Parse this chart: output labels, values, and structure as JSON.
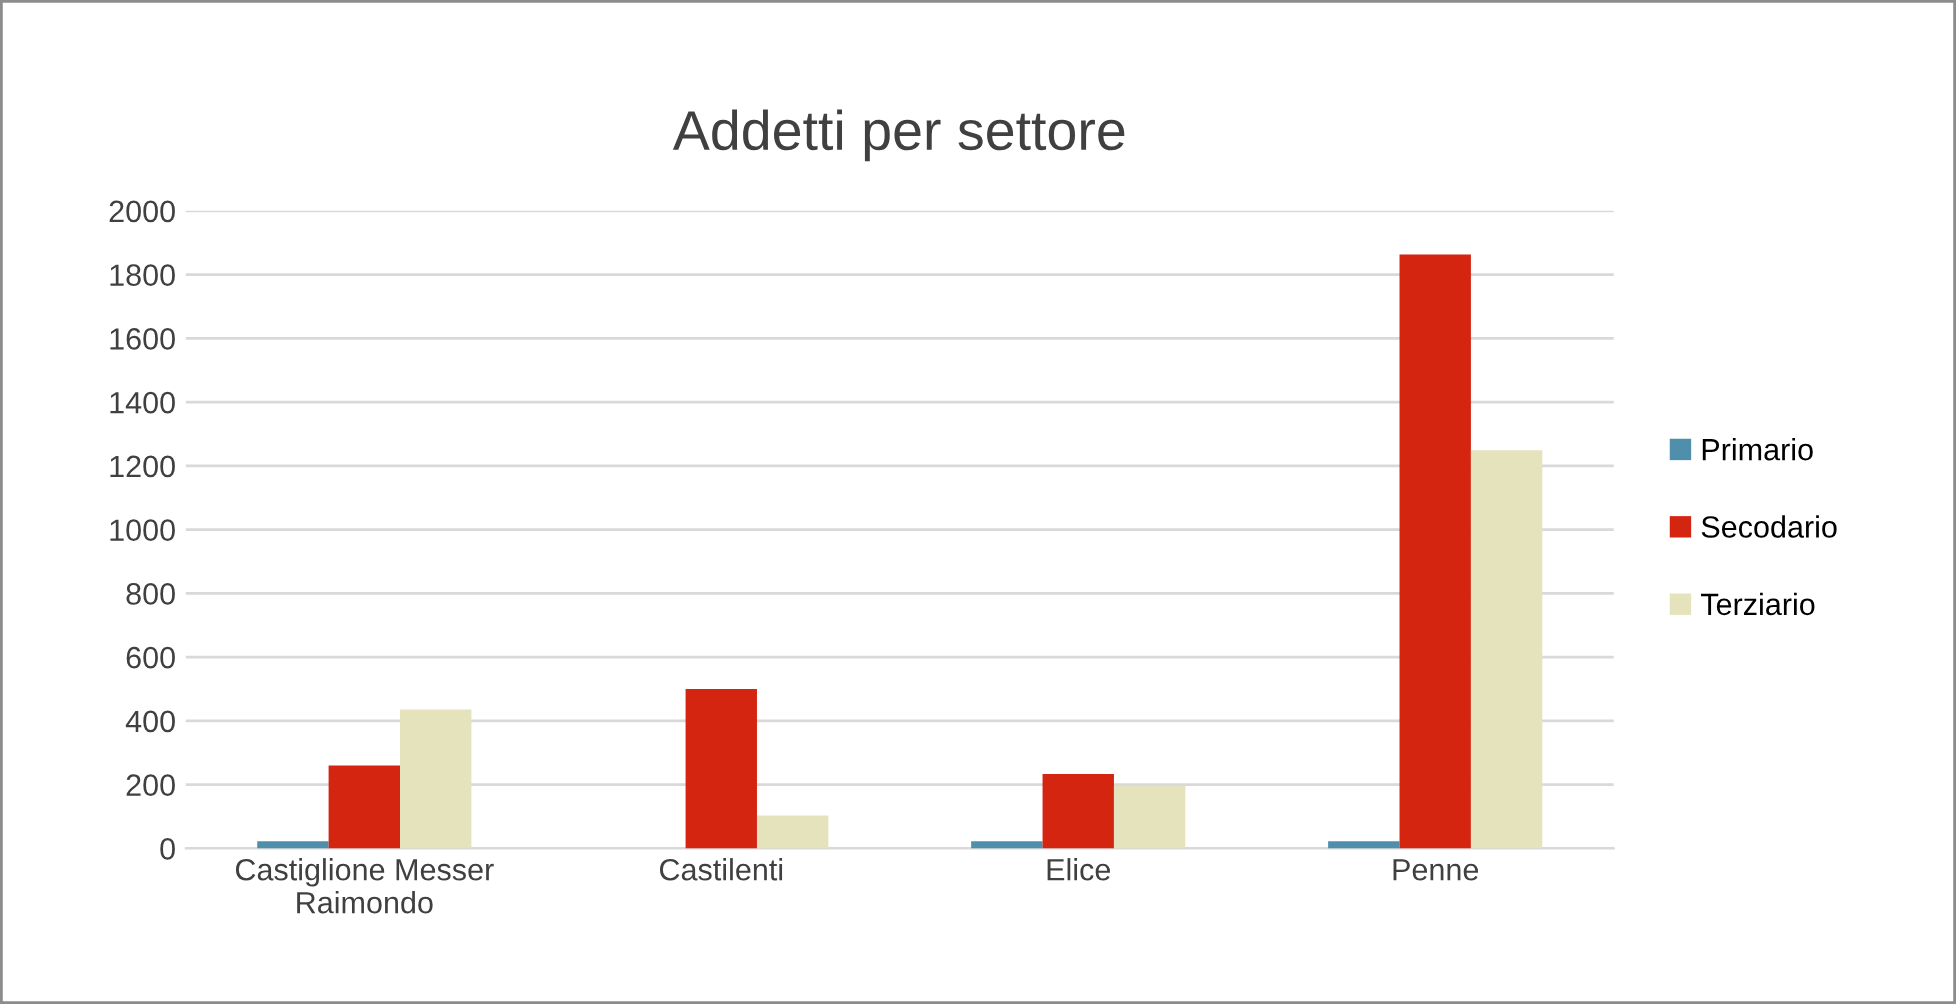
{
  "chart_data": {
    "type": "bar",
    "title": "Addetti per settore",
    "categories": [
      "Castiglione Messer\nRaimondo",
      "Castilenti",
      "Elice",
      "Penne"
    ],
    "series": [
      {
        "name": "Primario",
        "color": "#4f8fab",
        "values": [
          22,
          0,
          22,
          22
        ]
      },
      {
        "name": "Secodario",
        "color": "#d42511",
        "values": [
          260,
          500,
          233,
          1863
        ]
      },
      {
        "name": "Terziario",
        "color": "#e5e3bc",
        "values": [
          436,
          103,
          196,
          1249
        ]
      }
    ],
    "ylim": [
      0,
      2000
    ],
    "yticks": [
      0,
      200,
      400,
      600,
      800,
      1000,
      1200,
      1400,
      1600,
      1800,
      2000
    ],
    "grid": "y",
    "legend": "right"
  }
}
